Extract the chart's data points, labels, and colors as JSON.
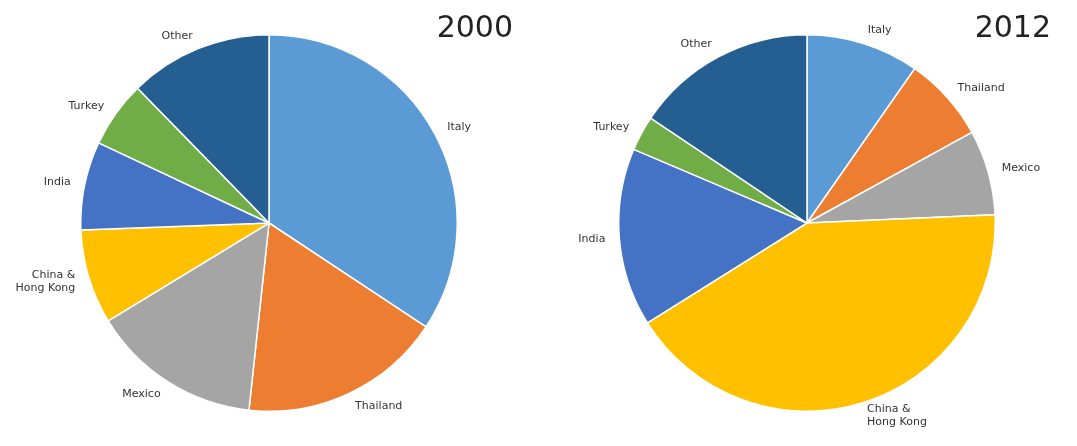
{
  "chart_data": [
    {
      "type": "pie",
      "title": "2000",
      "categories": [
        "Italy",
        "Thailand",
        "Mexico",
        "China & Hong Kong",
        "India",
        "Turkey",
        "Other"
      ],
      "values": [
        34.3,
        17.4,
        14.6,
        8.1,
        7.6,
        5.7,
        12.3
      ],
      "colors": [
        "#5b9bd5",
        "#ed7d31",
        "#a5a5a5",
        "#ffc000",
        "#4472c4",
        "#70ad47",
        "#255e91"
      ],
      "legend": false
    },
    {
      "type": "pie",
      "title": "2012",
      "categories": [
        "Italy",
        "Thailand",
        "Mexico",
        "China & Hong Kong",
        "India",
        "Turkey",
        "Other"
      ],
      "values": [
        9.7,
        7.3,
        7.3,
        41.8,
        15.3,
        3.0,
        15.6
      ],
      "colors": [
        "#5b9bd5",
        "#ed7d31",
        "#a5a5a5",
        "#ffc000",
        "#4472c4",
        "#70ad47",
        "#255e91"
      ],
      "legend": false
    }
  ]
}
